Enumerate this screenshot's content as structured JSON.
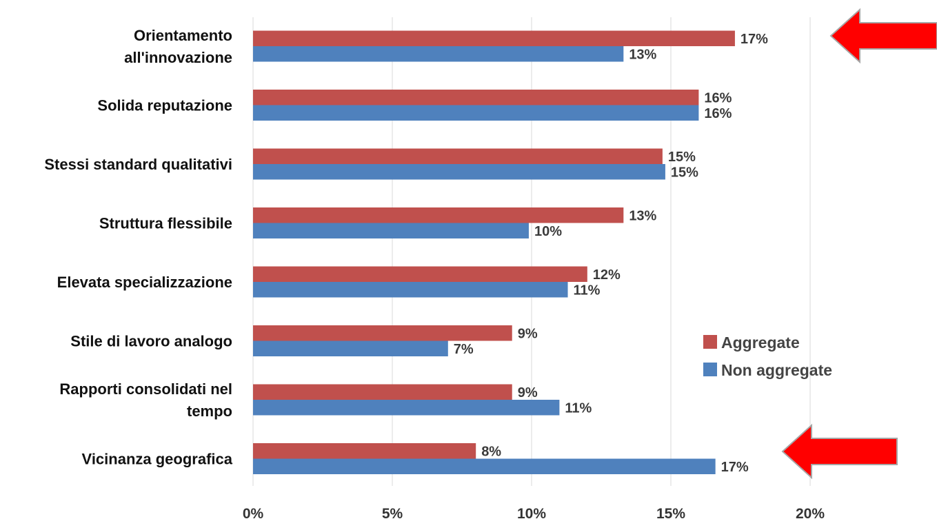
{
  "chart_data": {
    "type": "bar",
    "orientation": "horizontal",
    "categories": [
      [
        "Orientamento",
        "all'innovazione"
      ],
      [
        "Solida reputazione"
      ],
      [
        "Stessi standard qualitativi"
      ],
      [
        "Struttura flessibile"
      ],
      [
        "Elevata specializzazione"
      ],
      [
        "Stile di lavoro analogo"
      ],
      [
        "Rapporti consolidati nel",
        "tempo"
      ],
      [
        "Vicinanza geografica"
      ]
    ],
    "series": [
      {
        "name": "Aggregate",
        "color": "#c0504d",
        "values": [
          17.3,
          16.0,
          14.7,
          13.3,
          12.0,
          9.3,
          9.3,
          8.0
        ],
        "labels": [
          "17%",
          "16%",
          "15%",
          "13%",
          "12%",
          "9%",
          "9%",
          "8%"
        ]
      },
      {
        "name": "Non aggregate",
        "color": "#4f81bd",
        "values": [
          13.3,
          16.0,
          14.8,
          9.9,
          11.3,
          7.0,
          11.0,
          16.6
        ],
        "labels": [
          "13%",
          "16%",
          "15%",
          "10%",
          "11%",
          "7%",
          "11%",
          "17%"
        ]
      }
    ],
    "xlim": [
      0,
      20
    ],
    "xticks": [
      0,
      5,
      10,
      15,
      20
    ],
    "xtick_labels": [
      "0%",
      "5%",
      "10%",
      "15%",
      "20%"
    ],
    "grid": "vertical",
    "legend": "right",
    "highlight_arrows": [
      {
        "category_index": 0,
        "color": "#ff0000",
        "direction": "left"
      },
      {
        "category_index": 7,
        "color": "#ff0000",
        "direction": "left"
      }
    ]
  }
}
